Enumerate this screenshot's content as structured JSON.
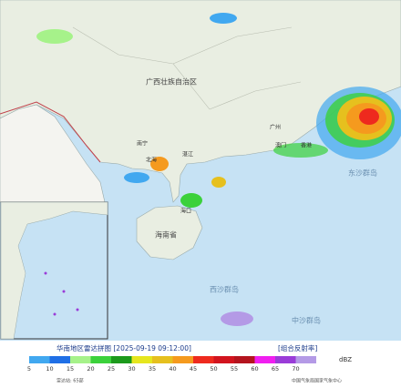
{
  "header": {
    "title": "华南地区雷达拼图 [2025-09-19 09:12:00]",
    "product": "[组合反射率]"
  },
  "legend": {
    "unit": "dBZ",
    "items": [
      {
        "value": 5,
        "color": "#41a8f0"
      },
      {
        "value": 10,
        "color": "#1f6fe6"
      },
      {
        "value": 15,
        "color": "#a6f28a"
      },
      {
        "value": 20,
        "color": "#3bd13b"
      },
      {
        "value": 25,
        "color": "#1c9a1c"
      },
      {
        "value": 30,
        "color": "#e6e61e"
      },
      {
        "value": 35,
        "color": "#e6c01e"
      },
      {
        "value": 40,
        "color": "#f59a1e"
      },
      {
        "value": 45,
        "color": "#ee2a1e"
      },
      {
        "value": 50,
        "color": "#d2141e"
      },
      {
        "value": 55,
        "color": "#b4141e"
      },
      {
        "value": 60,
        "color": "#f01ef0"
      },
      {
        "value": 65,
        "color": "#9a3cd8"
      },
      {
        "value": 70,
        "color": "#b49ae6"
      }
    ]
  },
  "map": {
    "labels": [
      "广西壮族自治区",
      "海南省",
      "西沙群岛",
      "中沙群岛",
      "东沙群岛",
      "南宁",
      "广州",
      "海口",
      "香港",
      "澳门",
      "湛江",
      "北海"
    ]
  },
  "footer": {
    "stations": "雷达站: 65部",
    "source": "中国气象局国家气象中心"
  }
}
